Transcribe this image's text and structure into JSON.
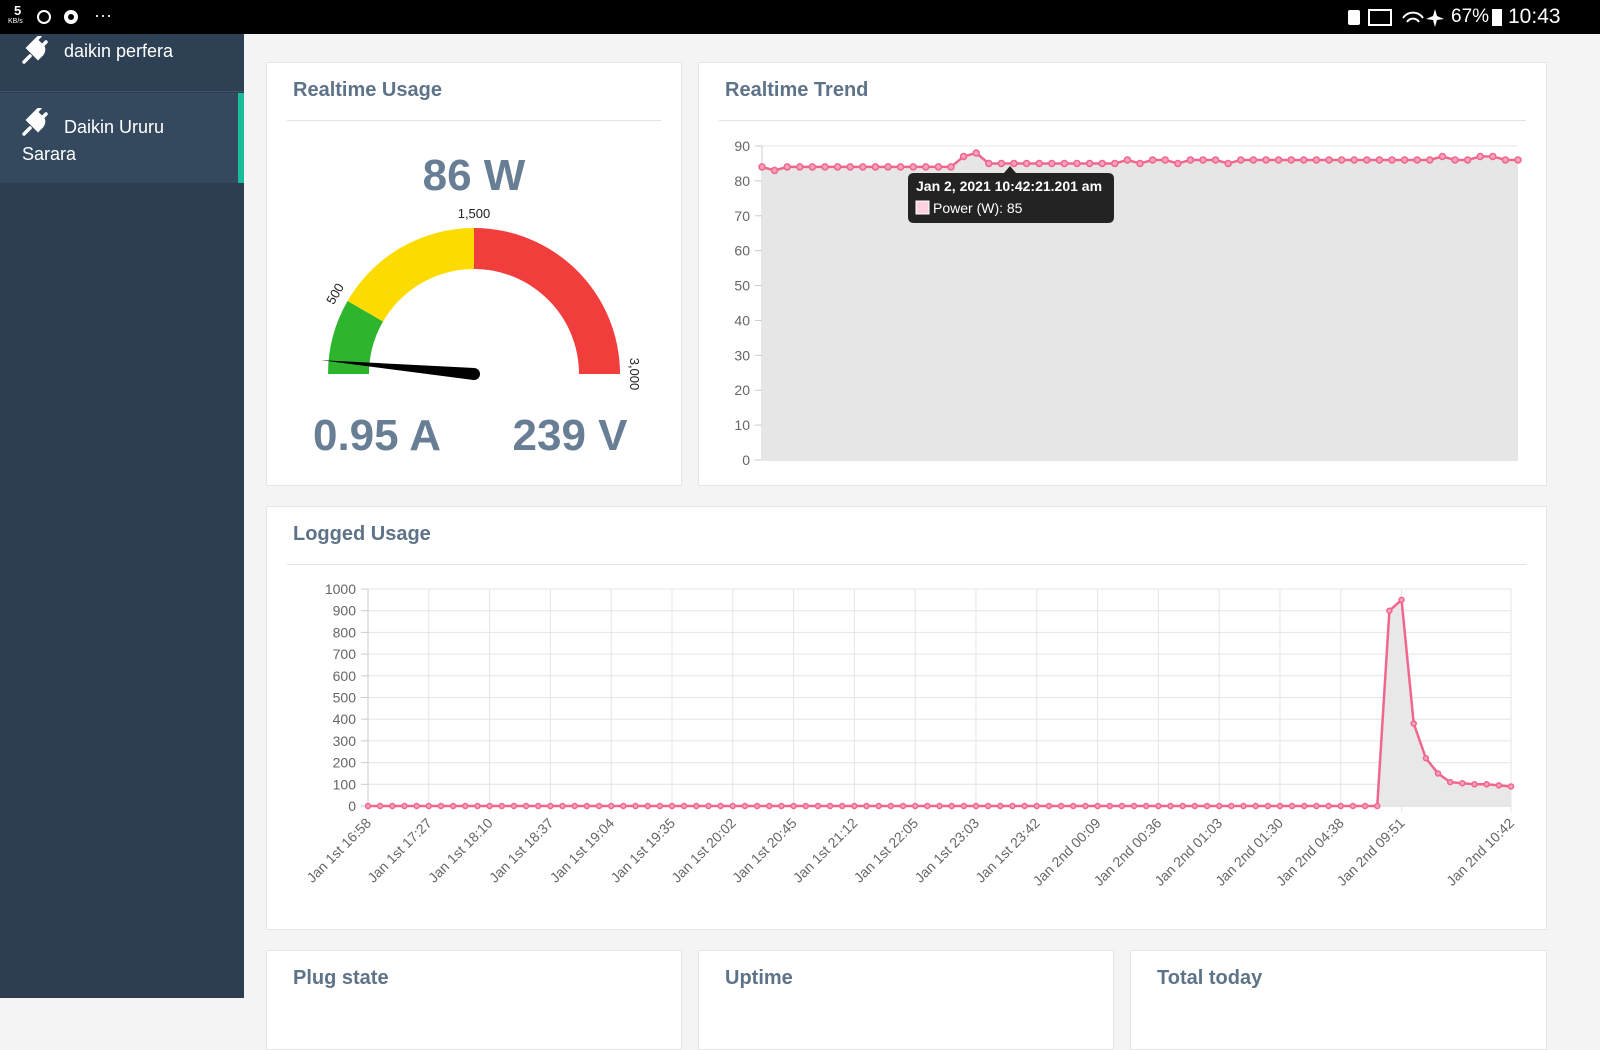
{
  "status_bar": {
    "speed": "5",
    "speed_unit": "KB/s",
    "more": "···",
    "battery": "67%",
    "time": "10:43"
  },
  "sidebar": {
    "items": [
      "daikin perfera",
      "Daikin Ururu Sarara"
    ]
  },
  "cards": [
    "Plug state",
    "Uptime",
    "Total today"
  ],
  "chart_data": [
    {
      "type": "gauge",
      "title": "Realtime Usage",
      "value": 86,
      "value_label": "86 W",
      "current": "0.95 A",
      "voltage": "239 V",
      "min": 0,
      "max": 3000,
      "ticks": [
        500,
        {
          "value": 1500,
          "label": "1,500"
        },
        {
          "value": 3000,
          "label": "3,000"
        }
      ],
      "bands": [
        {
          "from": 0,
          "to": 500,
          "color": "#2eb52e"
        },
        {
          "from": 500,
          "to": 1500,
          "color": "#fcdc00"
        },
        {
          "from": 1500,
          "to": 3000,
          "color": "#f23d3d"
        }
      ],
      "needle_color": "#000000"
    },
    {
      "type": "line",
      "title": "Realtime Trend",
      "color": "#f0668f",
      "area_color": "#e6e6e6",
      "ylim": [
        0,
        90
      ],
      "yticks": [
        0,
        10,
        20,
        30,
        40,
        50,
        60,
        70,
        80,
        90
      ],
      "grid": true,
      "values": [
        84,
        83,
        84,
        84,
        84,
        84,
        84,
        84,
        84,
        84,
        84,
        84,
        84,
        84,
        84,
        84,
        87,
        88,
        85,
        85,
        85,
        85,
        85,
        85,
        85,
        85,
        85,
        85,
        85,
        86,
        85,
        86,
        86,
        85,
        86,
        86,
        86,
        85,
        86,
        86,
        86,
        86,
        86,
        86,
        86,
        86,
        86,
        86,
        86,
        86,
        86,
        86,
        86,
        86,
        87,
        86,
        86,
        87,
        87,
        86,
        86
      ],
      "tooltip": {
        "title": "Jan 2, 2021 10:42:21.201 am",
        "text": "Power (W): 85"
      }
    },
    {
      "type": "line",
      "title": "Logged Usage",
      "color": "#f0668f",
      "area_color": "#e8e8e8",
      "ylim": [
        0,
        1000
      ],
      "yticks": [
        0,
        100,
        200,
        300,
        400,
        500,
        600,
        700,
        800,
        900,
        1000
      ],
      "grid": true,
      "x_grid": true,
      "categories": [
        "Jan 1st 16:58",
        null,
        null,
        null,
        null,
        "Jan 1st 17:27",
        null,
        null,
        null,
        null,
        "Jan 1st 18:10",
        null,
        null,
        null,
        null,
        "Jan 1st 18:37",
        null,
        null,
        null,
        null,
        "Jan 1st 19:04",
        null,
        null,
        null,
        null,
        "Jan 1st 19:35",
        null,
        null,
        null,
        null,
        "Jan 1st 20:02",
        null,
        null,
        null,
        null,
        "Jan 1st 20:45",
        null,
        null,
        null,
        null,
        "Jan 1st 21:12",
        null,
        null,
        null,
        null,
        "Jan 1st 22:05",
        null,
        null,
        null,
        null,
        "Jan 1st 23:03",
        null,
        null,
        null,
        null,
        "Jan 1st 23:42",
        null,
        null,
        null,
        null,
        "Jan 2nd 00:09",
        null,
        null,
        null,
        null,
        "Jan 2nd 00:36",
        null,
        null,
        null,
        null,
        "Jan 2nd 01:03",
        null,
        null,
        null,
        null,
        "Jan 2nd 01:30",
        null,
        null,
        null,
        null,
        "Jan 2nd 04:38",
        null,
        null,
        null,
        null,
        "Jan 2nd 09:51",
        null,
        null,
        null,
        null,
        null,
        null,
        null,
        null,
        "Jan 2nd 10:42"
      ],
      "values": [
        0,
        0,
        0,
        0,
        0,
        0,
        0,
        0,
        0,
        0,
        0,
        0,
        0,
        0,
        0,
        0,
        0,
        0,
        0,
        0,
        0,
        0,
        0,
        0,
        0,
        0,
        0,
        0,
        0,
        0,
        0,
        0,
        0,
        0,
        0,
        0,
        0,
        0,
        0,
        0,
        0,
        0,
        0,
        0,
        0,
        0,
        0,
        0,
        0,
        0,
        0,
        0,
        0,
        0,
        0,
        0,
        0,
        0,
        0,
        0,
        0,
        0,
        0,
        0,
        0,
        0,
        0,
        0,
        0,
        0,
        0,
        0,
        0,
        0,
        0,
        0,
        0,
        0,
        0,
        0,
        0,
        0,
        0,
        0,
        900,
        950,
        380,
        220,
        150,
        110,
        105,
        100,
        100,
        95,
        90
      ]
    }
  ]
}
